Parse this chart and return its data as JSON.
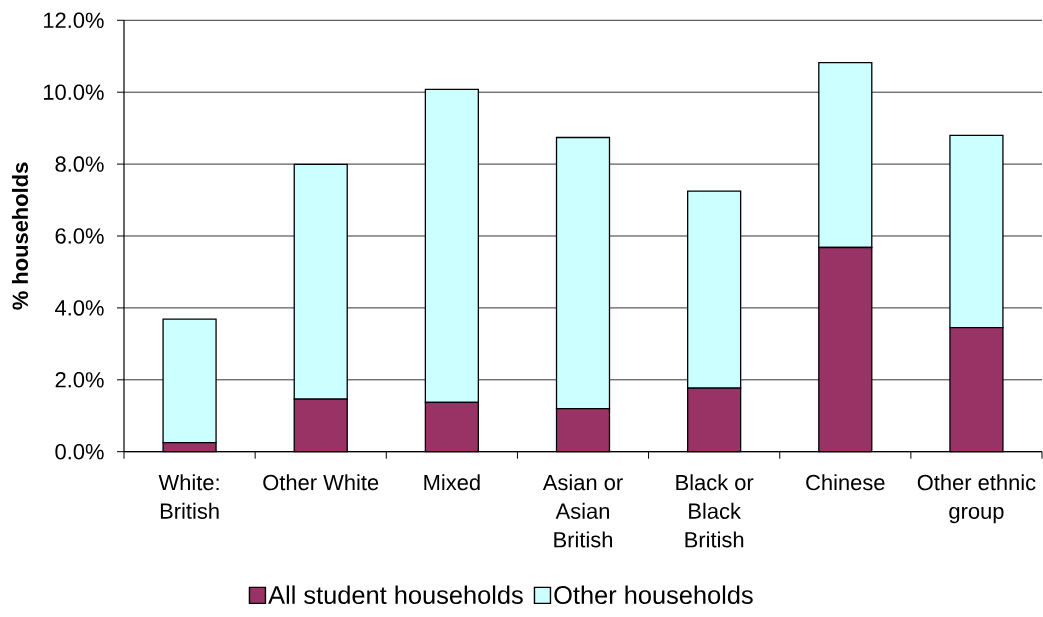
{
  "chart_data": {
    "type": "bar",
    "stacked": true,
    "categories": [
      "White: British",
      "Other White",
      "Mixed",
      "Asian or Asian British",
      "Black or Black British",
      "Chinese",
      "Other ethnic group"
    ],
    "series": [
      {
        "name": "All student households",
        "color": "#993366",
        "values": [
          0.25,
          1.46,
          1.37,
          1.2,
          1.77,
          5.68,
          3.45
        ]
      },
      {
        "name": "Other households",
        "color": "#ccffff",
        "values": [
          3.44,
          6.53,
          8.71,
          7.54,
          5.48,
          5.14,
          5.35
        ]
      }
    ],
    "ylabel": "% households",
    "ylim": [
      0,
      12
    ],
    "yticks": [
      {
        "value": 0,
        "label": "0.0%"
      },
      {
        "value": 2,
        "label": "2.0%"
      },
      {
        "value": 4,
        "label": "4.0%"
      },
      {
        "value": 6,
        "label": "6.0%"
      },
      {
        "value": 8,
        "label": "8.0%"
      },
      {
        "value": 10,
        "label": "10.0%"
      },
      {
        "value": 12,
        "label": "12.0%"
      }
    ],
    "grid": "y",
    "legend": "bottom"
  }
}
